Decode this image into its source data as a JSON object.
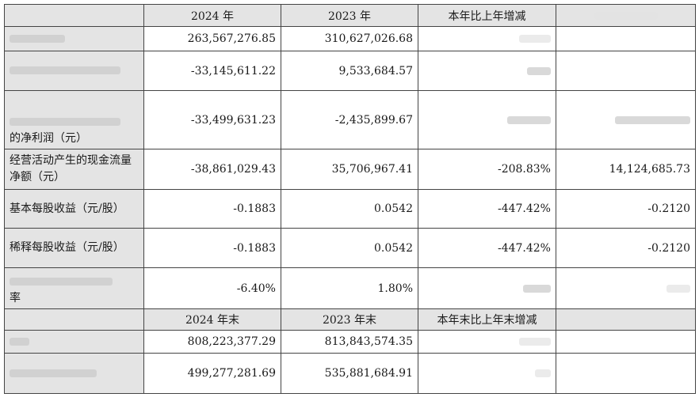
{
  "header": {
    "col_2024": "2024 年",
    "col_2023": "2023 年",
    "col_change": "本年比上年增减",
    "col_2024_end": "2024 年末",
    "col_2023_end": "2023 年末",
    "col_change_end": "本年末比上年末增减"
  },
  "rows": [
    {
      "label": "",
      "v2024": "263,567,276.85",
      "v2023": "310,627,026.68",
      "change": "",
      "extra": ""
    },
    {
      "label": "",
      "v2024": "-33,145,611.22",
      "v2023": "9,533,684.57",
      "change": "",
      "extra": ""
    },
    {
      "label": "的净利润（元）",
      "v2024": "-33,499,631.23",
      "v2023": "-2,435,899.67",
      "change": "",
      "extra": ""
    },
    {
      "label": "经营活动产生的现金流量净额（元）",
      "v2024": "-38,861,029.43",
      "v2023": "35,706,967.41",
      "change": "-208.83%",
      "extra": "14,124,685.73"
    },
    {
      "label": "基本每股收益（元/股）",
      "v2024": "-0.1883",
      "v2023": "0.0542",
      "change": "-447.42%",
      "extra": "-0.2120"
    },
    {
      "label": "稀释每股收益（元/股）",
      "v2024": "-0.1883",
      "v2023": "0.0542",
      "change": "-447.42%",
      "extra": "-0.2120"
    },
    {
      "label": "率",
      "v2024": "-6.40%",
      "v2023": "1.80%",
      "change": "",
      "extra": ""
    }
  ],
  "rows_end": [
    {
      "label": "",
      "v2024": "808,223,377.29",
      "v2023": "813,843,574.35",
      "change": "",
      "extra": ""
    },
    {
      "label": "",
      "v2024": "499,277,281.69",
      "v2023": "535,881,684.91",
      "change": "",
      "extra": ""
    }
  ]
}
